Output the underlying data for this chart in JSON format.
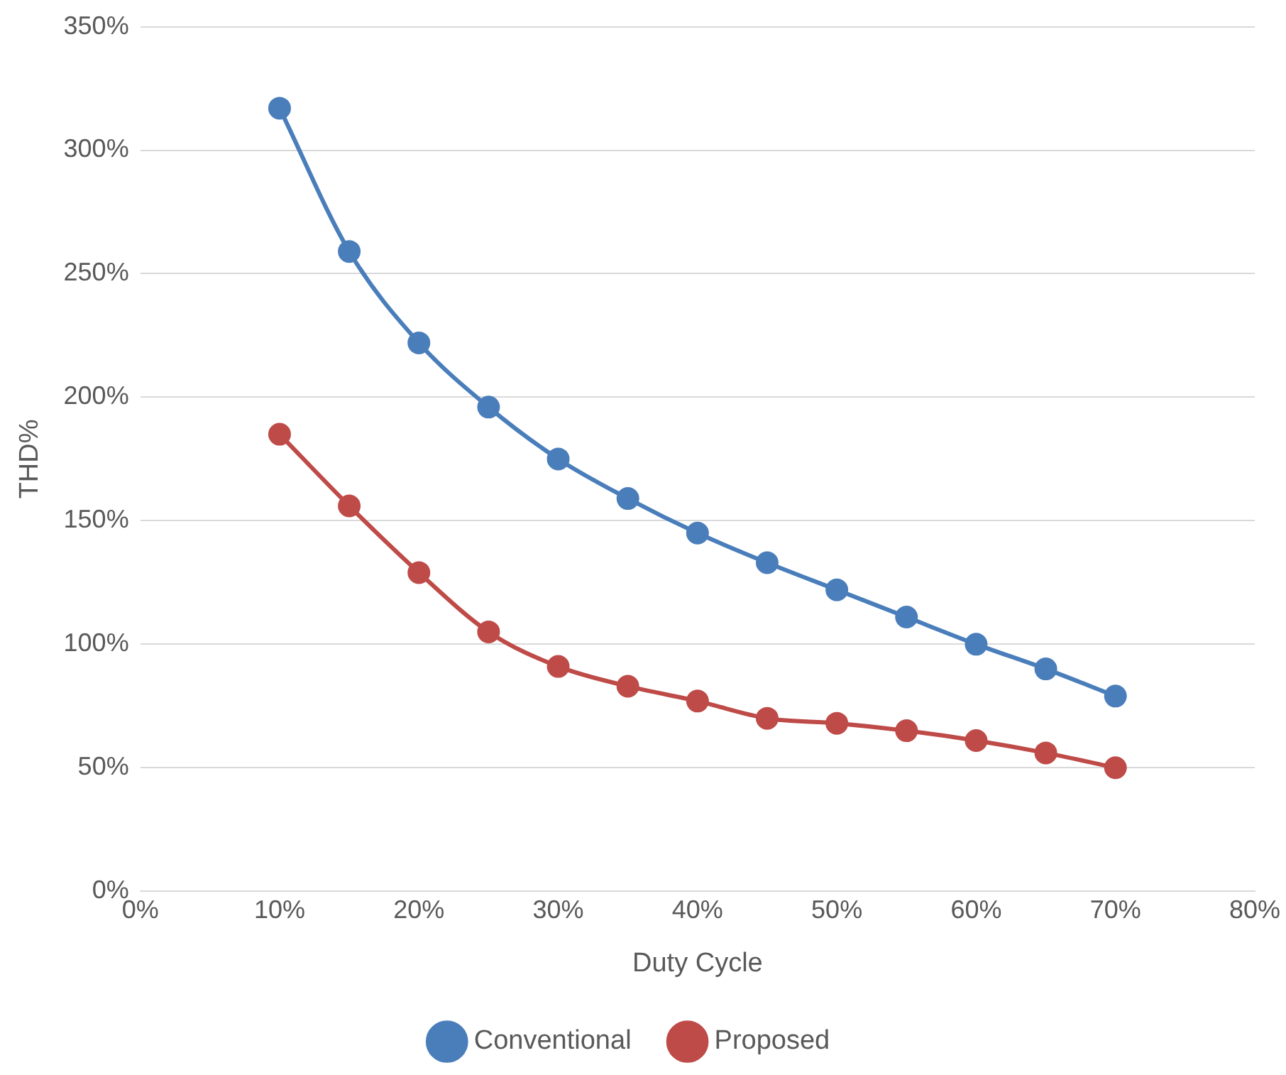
{
  "chart_data": {
    "type": "line",
    "xlabel": "Duty Cycle",
    "ylabel": "THD%",
    "x": [
      10,
      15,
      20,
      25,
      30,
      35,
      40,
      45,
      50,
      55,
      60,
      65,
      70
    ],
    "series": [
      {
        "name": "Conventional",
        "color": "#4a7ebb",
        "values": [
          317,
          259,
          222,
          196,
          175,
          159,
          145,
          133,
          122,
          111,
          100,
          90,
          79
        ]
      },
      {
        "name": "Proposed",
        "color": "#be4b48",
        "values": [
          185,
          156,
          129,
          105,
          91,
          83,
          77,
          70,
          68,
          65,
          61,
          56,
          50
        ]
      }
    ],
    "xlim": [
      0,
      80
    ],
    "xticks": [
      {
        "value": 0,
        "label": "0%"
      },
      {
        "value": 10,
        "label": "10%"
      },
      {
        "value": 20,
        "label": "20%"
      },
      {
        "value": 30,
        "label": "30%"
      },
      {
        "value": 40,
        "label": "40%"
      },
      {
        "value": 50,
        "label": "50%"
      },
      {
        "value": 60,
        "label": "60%"
      },
      {
        "value": 70,
        "label": "70%"
      },
      {
        "value": 80,
        "label": "80%"
      }
    ],
    "ylim": [
      0,
      350
    ],
    "yticks": [
      {
        "value": 0,
        "label": "0%"
      },
      {
        "value": 50,
        "label": "50%"
      },
      {
        "value": 100,
        "label": "100%"
      },
      {
        "value": 150,
        "label": "150%"
      },
      {
        "value": 200,
        "label": "200%"
      },
      {
        "value": 250,
        "label": "250%"
      },
      {
        "value": 300,
        "label": "300%"
      },
      {
        "value": 350,
        "label": "350%"
      }
    ],
    "grid": "y",
    "legend": "bottom",
    "marker": "circle",
    "line_style": "solid"
  }
}
